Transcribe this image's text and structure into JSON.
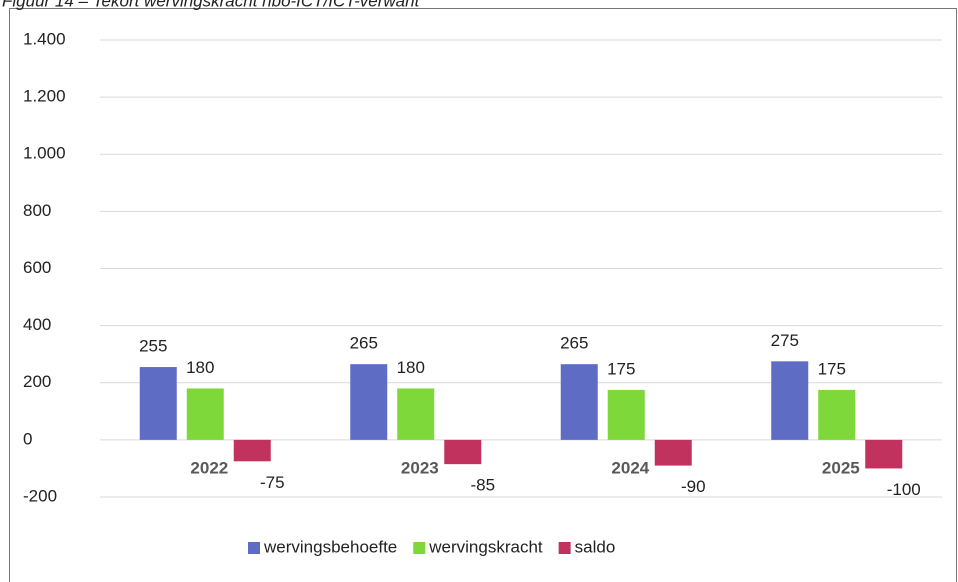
{
  "chart_data": {
    "type": "bar",
    "title": "Figuur 14 – Tekort wervingskracht hbo-ICT/ICT-verwant",
    "categories": [
      "2022",
      "2023",
      "2024",
      "2025"
    ],
    "series": [
      {
        "name": "wervingsbehoefte",
        "color": "#5f6cc4",
        "values": [
          255,
          265,
          265,
          275
        ]
      },
      {
        "name": "wervingskracht",
        "color": "#7fd83a",
        "values": [
          180,
          180,
          175,
          175
        ]
      },
      {
        "name": "saldo",
        "color": "#c2325f",
        "values": [
          -75,
          -85,
          -90,
          -100
        ]
      }
    ],
    "ylim": [
      -200,
      1400
    ],
    "yticks": [
      -200,
      0,
      200,
      400,
      600,
      800,
      {
        "value": 1000,
        "label": "1.000"
      },
      {
        "value": 1200,
        "label": "1.200"
      },
      {
        "value": 1400,
        "label": "1.400"
      }
    ],
    "grid": true,
    "legend": "bottom"
  }
}
